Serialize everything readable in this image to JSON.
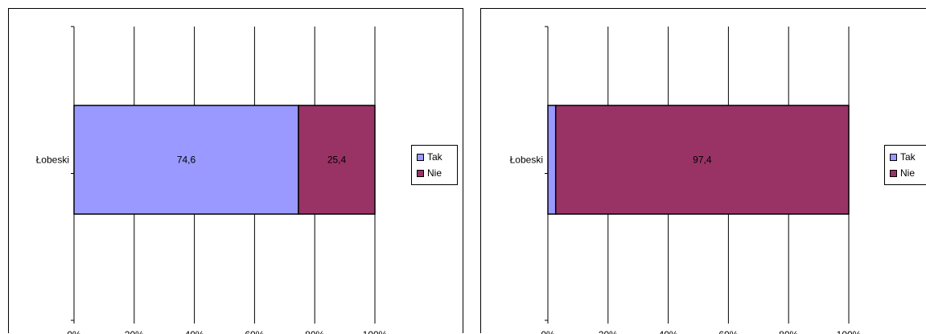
{
  "chart_data": [
    {
      "type": "bar",
      "orientation": "horizontal",
      "stacked": "percent",
      "categories": [
        "Łobeski"
      ],
      "series": [
        {
          "name": "Tak",
          "values": [
            74.6
          ],
          "color": "#9999FF"
        },
        {
          "name": "Nie",
          "values": [
            25.4
          ],
          "color": "#993366"
        }
      ],
      "xticks": [
        "0%",
        "20%",
        "40%",
        "60%",
        "80%",
        "100%"
      ],
      "xlim": [
        0,
        100
      ],
      "grid": "vertical",
      "legend": "right"
    },
    {
      "type": "bar",
      "orientation": "horizontal",
      "stacked": "percent",
      "categories": [
        "Łobeski"
      ],
      "series": [
        {
          "name": "Tak",
          "values": [
            2.6
          ],
          "color": "#9999FF"
        },
        {
          "name": "Nie",
          "values": [
            97.4
          ],
          "color": "#993366"
        }
      ],
      "xticks": [
        "0%",
        "20%",
        "40%",
        "60%",
        "80%",
        "100%"
      ],
      "xlim": [
        0,
        100
      ],
      "grid": "vertical",
      "legend": "right"
    }
  ]
}
